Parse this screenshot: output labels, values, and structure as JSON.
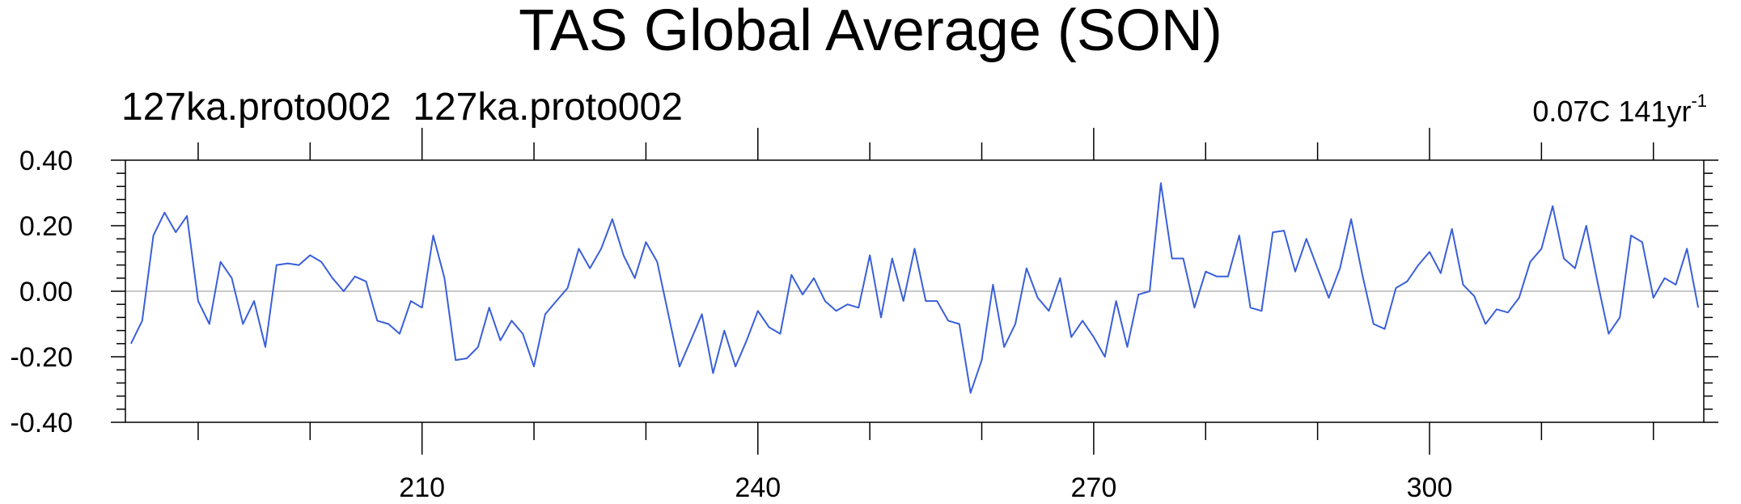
{
  "chart_data": {
    "type": "line",
    "title": "TAS Global Average (SON)",
    "subtitle_left": "127ka.proto002  127ka.proto002",
    "rate_text": "0.07C 141yr",
    "rate_superscript": "-1",
    "xlabel": "",
    "ylabel": "",
    "xlim": [
      183.5,
      324.5
    ],
    "ylim": [
      -0.4,
      0.4
    ],
    "x_ticks": [
      210,
      240,
      270,
      300
    ],
    "x_tick_labels": [
      "210",
      "240",
      "270",
      "300"
    ],
    "y_ticks": [
      -0.4,
      -0.2,
      0.0,
      0.2,
      0.4
    ],
    "y_tick_labels": [
      "-0.40",
      "-0.20",
      "0.00",
      "0.20",
      "0.40"
    ],
    "zero_line": true,
    "grid": false,
    "colors": {
      "line": "#3a5fd9",
      "zero_line": "#b5b5b5",
      "axis": "#000000"
    },
    "series": [
      {
        "x_start": 184,
        "x_step": 1,
        "values": [
          -0.16,
          -0.09,
          0.17,
          0.24,
          0.18,
          0.23,
          -0.03,
          -0.1,
          0.09,
          0.04,
          -0.1,
          -0.03,
          -0.17,
          0.08,
          0.085,
          0.08,
          0.11,
          0.09,
          0.04,
          0.0,
          0.045,
          0.03,
          -0.09,
          -0.1,
          -0.13,
          -0.03,
          -0.05,
          0.17,
          0.04,
          -0.21,
          -0.205,
          -0.17,
          -0.05,
          -0.15,
          -0.09,
          -0.13,
          -0.23,
          -0.07,
          -0.03,
          0.01,
          0.13,
          0.07,
          0.13,
          0.22,
          0.11,
          0.04,
          0.15,
          0.09,
          -0.07,
          -0.23,
          -0.15,
          -0.07,
          -0.25,
          -0.12,
          -0.23,
          -0.15,
          -0.06,
          -0.11,
          -0.13,
          0.05,
          -0.01,
          0.04,
          -0.03,
          -0.06,
          -0.04,
          -0.05,
          0.11,
          -0.08,
          0.1,
          -0.03,
          0.13,
          -0.03,
          -0.03,
          -0.09,
          -0.1,
          -0.31,
          -0.21,
          0.02,
          -0.17,
          -0.1,
          0.07,
          -0.02,
          -0.06,
          0.04,
          -0.14,
          -0.09,
          -0.14,
          -0.2,
          -0.03,
          -0.17,
          -0.01,
          0.0,
          0.33,
          0.1,
          0.1,
          -0.05,
          0.06,
          0.045,
          0.045,
          0.17,
          -0.05,
          -0.06,
          0.18,
          0.185,
          0.06,
          0.16,
          0.07,
          -0.02,
          0.07,
          0.22,
          0.05,
          -0.1,
          -0.115,
          0.01,
          0.03,
          0.08,
          0.12,
          0.055,
          0.19,
          0.02,
          -0.015,
          -0.1,
          -0.055,
          -0.065,
          -0.02,
          0.09,
          0.13,
          0.26,
          0.1,
          0.07,
          0.2,
          0.03,
          -0.13,
          -0.08,
          0.17,
          0.15,
          -0.02,
          0.04,
          0.02,
          0.13,
          -0.05
        ]
      }
    ]
  }
}
